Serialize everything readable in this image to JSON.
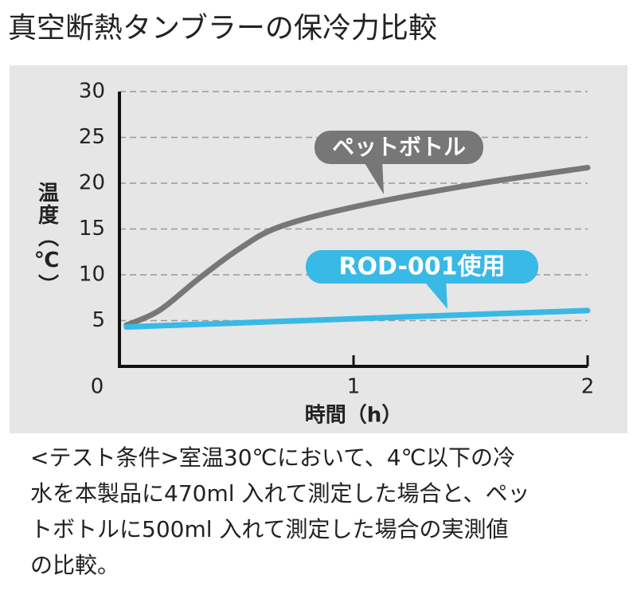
{
  "chart_data": {
    "type": "line",
    "title": "真空断熱タンブラーの保冷力比較",
    "y_label": "温度（℃）",
    "x_label": "時間（h）",
    "xlim": [
      0,
      2
    ],
    "xticks": [
      0,
      1,
      2
    ],
    "ylim": [
      0,
      30
    ],
    "yticks": [
      5,
      10,
      15,
      20,
      25,
      30
    ],
    "grid": true,
    "series": [
      {
        "name": "ペットボトル",
        "color": "#777777",
        "x": [
          0.03,
          0.17,
          0.34,
          0.51,
          0.68,
          1.0,
          1.5,
          2.0
        ],
        "values": [
          4.5,
          6.1,
          9.6,
          12.8,
          15.2,
          17.4,
          19.8,
          21.7
        ]
      },
      {
        "name": "ROD-001使用",
        "color": "#38b9e6",
        "x": [
          0.03,
          1.0,
          2.0
        ],
        "values": [
          4.3,
          5.2,
          6.1
        ]
      }
    ],
    "caption": [
      "<テスト条件>室温30℃において、4℃以下の冷",
      "水を本製品に470ml 入れて測定した場合と、ペッ",
      "トボトルに500ml 入れて測定した場合の実測値",
      "の比較。"
    ]
  }
}
